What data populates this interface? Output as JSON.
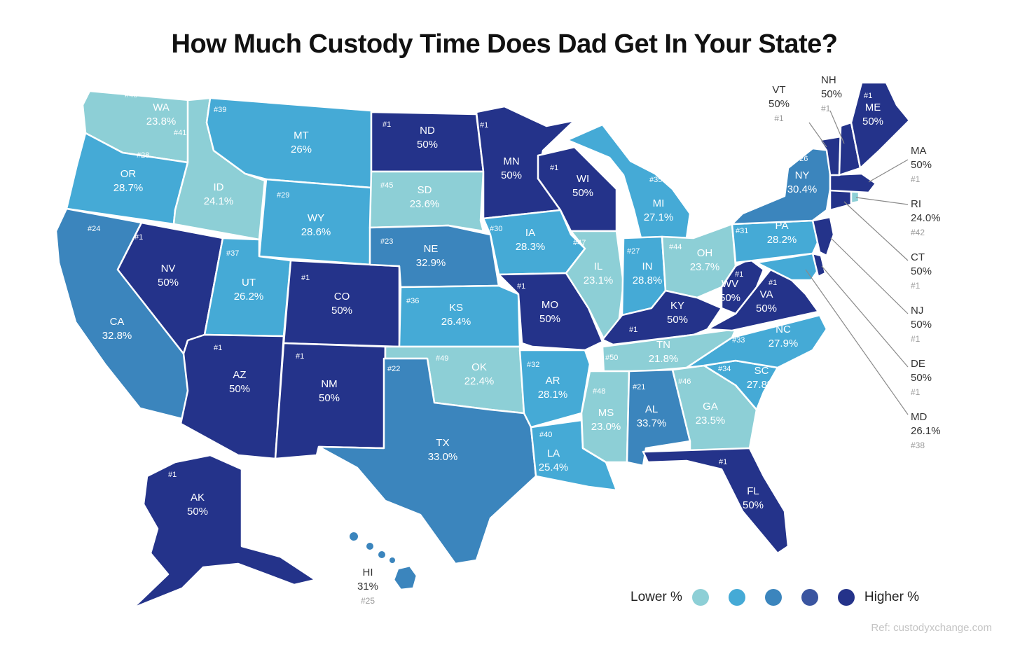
{
  "title": "How Much Custody Time Does Dad Get In Your State?",
  "legend": {
    "low_label": "Lower %",
    "high_label": "Higher %",
    "colors": [
      "#8dcfd6",
      "#45aad6",
      "#3b85bd",
      "#3a55a0",
      "#24338a"
    ]
  },
  "source": "Ref: custodyxchange.com",
  "states": {
    "WA": {
      "abbr": "WA",
      "pct": "23.8%",
      "rank": "#43",
      "color": "#8dcfd6"
    },
    "OR": {
      "abbr": "OR",
      "pct": "28.7%",
      "rank": "#28",
      "color": "#45aad6"
    },
    "CA": {
      "abbr": "CA",
      "pct": "32.8%",
      "rank": "#24",
      "color": "#3b85bd"
    },
    "ID": {
      "abbr": "ID",
      "pct": "24.1%",
      "rank": "#41",
      "color": "#8dcfd6"
    },
    "NV": {
      "abbr": "NV",
      "pct": "50%",
      "rank": "#1",
      "color": "#24338a"
    },
    "MT": {
      "abbr": "MT",
      "pct": "26%",
      "rank": "#39",
      "color": "#45aad6"
    },
    "WY": {
      "abbr": "WY",
      "pct": "28.6%",
      "rank": "#29",
      "color": "#45aad6"
    },
    "UT": {
      "abbr": "UT",
      "pct": "26.2%",
      "rank": "#37",
      "color": "#45aad6"
    },
    "AZ": {
      "abbr": "AZ",
      "pct": "50%",
      "rank": "#1",
      "color": "#24338a"
    },
    "CO": {
      "abbr": "CO",
      "pct": "50%",
      "rank": "#1",
      "color": "#24338a"
    },
    "NM": {
      "abbr": "NM",
      "pct": "50%",
      "rank": "#1",
      "color": "#24338a"
    },
    "ND": {
      "abbr": "ND",
      "pct": "50%",
      "rank": "#1",
      "color": "#24338a"
    },
    "SD": {
      "abbr": "SD",
      "pct": "23.6%",
      "rank": "#45",
      "color": "#8dcfd6"
    },
    "NE": {
      "abbr": "NE",
      "pct": "32.9%",
      "rank": "#23",
      "color": "#3b85bd"
    },
    "KS": {
      "abbr": "KS",
      "pct": "26.4%",
      "rank": "#36",
      "color": "#45aad6"
    },
    "OK": {
      "abbr": "OK",
      "pct": "22.4%",
      "rank": "#49",
      "color": "#8dcfd6"
    },
    "TX": {
      "abbr": "TX",
      "pct": "33.0%",
      "rank": "#22",
      "color": "#3b85bd"
    },
    "MN": {
      "abbr": "MN",
      "pct": "50%",
      "rank": "#1",
      "color": "#24338a"
    },
    "IA": {
      "abbr": "IA",
      "pct": "28.3%",
      "rank": "#30",
      "color": "#45aad6"
    },
    "MO": {
      "abbr": "MO",
      "pct": "50%",
      "rank": "#1",
      "color": "#24338a"
    },
    "AR": {
      "abbr": "AR",
      "pct": "28.1%",
      "rank": "#32",
      "color": "#45aad6"
    },
    "LA": {
      "abbr": "LA",
      "pct": "25.4%",
      "rank": "#40",
      "color": "#45aad6"
    },
    "WI": {
      "abbr": "WI",
      "pct": "50%",
      "rank": "#1",
      "color": "#24338a"
    },
    "IL": {
      "abbr": "IL",
      "pct": "23.1%",
      "rank": "#47",
      "color": "#8dcfd6"
    },
    "MI": {
      "abbr": "MI",
      "pct": "27.1%",
      "rank": "#35",
      "color": "#45aad6"
    },
    "IN": {
      "abbr": "IN",
      "pct": "28.8%",
      "rank": "#27",
      "color": "#45aad6"
    },
    "OH": {
      "abbr": "OH",
      "pct": "23.7%",
      "rank": "#44",
      "color": "#8dcfd6"
    },
    "KY": {
      "abbr": "KY",
      "pct": "50%",
      "rank": "#1",
      "color": "#24338a"
    },
    "TN": {
      "abbr": "TN",
      "pct": "21.8%",
      "rank": "#50",
      "color": "#8dcfd6"
    },
    "MS": {
      "abbr": "MS",
      "pct": "23.0%",
      "rank": "#48",
      "color": "#8dcfd6"
    },
    "AL": {
      "abbr": "AL",
      "pct": "33.7%",
      "rank": "#21",
      "color": "#3b85bd"
    },
    "GA": {
      "abbr": "GA",
      "pct": "23.5%",
      "rank": "#46",
      "color": "#8dcfd6"
    },
    "FL": {
      "abbr": "FL",
      "pct": "50%",
      "rank": "#1",
      "color": "#24338a"
    },
    "SC": {
      "abbr": "SC",
      "pct": "27.8%",
      "rank": "#34",
      "color": "#45aad6"
    },
    "NC": {
      "abbr": "NC",
      "pct": "27.9%",
      "rank": "#33",
      "color": "#45aad6"
    },
    "VA": {
      "abbr": "VA",
      "pct": "50%",
      "rank": "#1",
      "color": "#24338a"
    },
    "WV": {
      "abbr": "WV",
      "pct": "50%",
      "rank": "#1",
      "color": "#24338a"
    },
    "PA": {
      "abbr": "PA",
      "pct": "28.2%",
      "rank": "#31",
      "color": "#45aad6"
    },
    "NY": {
      "abbr": "NY",
      "pct": "30.4%",
      "rank": "#26",
      "color": "#3b85bd"
    },
    "ME": {
      "abbr": "ME",
      "pct": "50%",
      "rank": "#1",
      "color": "#24338a"
    },
    "AK": {
      "abbr": "AK",
      "pct": "50%",
      "rank": "#1",
      "color": "#24338a"
    },
    "HI": {
      "abbr": "HI",
      "pct": "31%",
      "rank": "#25",
      "color": "#3b85bd"
    },
    "VT": {
      "abbr": "VT",
      "pct": "50%",
      "rank": "#1",
      "color": "#24338a"
    },
    "NH": {
      "abbr": "NH",
      "pct": "50%",
      "rank": "#1",
      "color": "#24338a"
    },
    "MA": {
      "abbr": "MA",
      "pct": "50%",
      "rank": "#1",
      "color": "#24338a"
    },
    "RI": {
      "abbr": "RI",
      "pct": "24.0%",
      "rank": "#42",
      "color": "#8dcfd6"
    },
    "CT": {
      "abbr": "CT",
      "pct": "50%",
      "rank": "#1",
      "color": "#24338a"
    },
    "NJ": {
      "abbr": "NJ",
      "pct": "50%",
      "rank": "#1",
      "color": "#24338a"
    },
    "DE": {
      "abbr": "DE",
      "pct": "50%",
      "rank": "#1",
      "color": "#24338a"
    },
    "MD": {
      "abbr": "MD",
      "pct": "26.1%",
      "rank": "#38",
      "color": "#45aad6"
    }
  }
}
